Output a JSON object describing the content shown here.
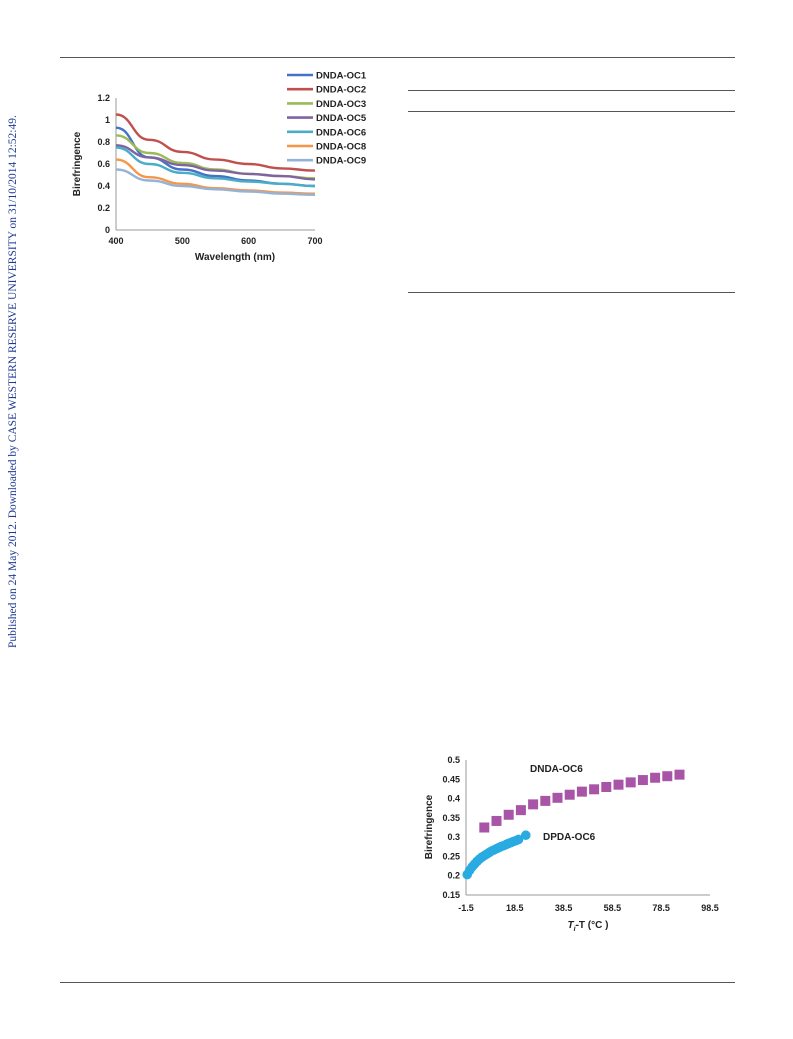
{
  "watermark": "Published on 24 May 2012. Downloaded by CASE WESTERN RESERVE UNIVERSITY on 31/10/2014 12:52:49.",
  "chart_data": [
    {
      "type": "line",
      "xlabel": "Wavelength (nm)",
      "ylabel": "Birefringence",
      "xlim": [
        400,
        700
      ],
      "ylim": [
        0,
        1.2
      ],
      "xticks": [
        "400",
        "500",
        "600",
        "700"
      ],
      "yticks": [
        "0",
        "0.2",
        "0.4",
        "0.6",
        "0.8",
        "1",
        "1.2"
      ],
      "legend_position": "top-right",
      "grid": false,
      "series": [
        {
          "name": "DNDA-OC1",
          "color": "#4472c4",
          "x": [
            400,
            450,
            500,
            550,
            600,
            650,
            700
          ],
          "y": [
            0.93,
            0.66,
            0.55,
            0.49,
            0.45,
            0.42,
            0.4
          ]
        },
        {
          "name": "DNDA-OC2",
          "color": "#c0504d",
          "x": [
            400,
            450,
            500,
            550,
            600,
            650,
            700
          ],
          "y": [
            1.05,
            0.82,
            0.71,
            0.64,
            0.6,
            0.56,
            0.54
          ]
        },
        {
          "name": "DNDA-OC3",
          "color": "#9bbb59",
          "x": [
            400,
            450,
            500,
            550,
            600,
            650,
            700
          ],
          "y": [
            0.86,
            0.7,
            0.61,
            0.55,
            0.51,
            0.49,
            0.47
          ]
        },
        {
          "name": "DNDA-OC5",
          "color": "#8064a2",
          "x": [
            400,
            450,
            500,
            550,
            600,
            650,
            700
          ],
          "y": [
            0.77,
            0.66,
            0.59,
            0.54,
            0.51,
            0.49,
            0.46
          ]
        },
        {
          "name": "DNDA-OC6",
          "color": "#4bacc6",
          "x": [
            400,
            450,
            500,
            550,
            600,
            650,
            700
          ],
          "y": [
            0.75,
            0.6,
            0.52,
            0.47,
            0.44,
            0.42,
            0.4
          ]
        },
        {
          "name": "DNDA-OC8",
          "color": "#f79646",
          "x": [
            400,
            450,
            500,
            550,
            600,
            650,
            700
          ],
          "y": [
            0.64,
            0.48,
            0.42,
            0.38,
            0.36,
            0.34,
            0.33
          ]
        },
        {
          "name": "DNDA-OC9",
          "color": "#95b3d7",
          "x": [
            400,
            450,
            500,
            550,
            600,
            650,
            700
          ],
          "y": [
            0.55,
            0.45,
            0.4,
            0.37,
            0.35,
            0.33,
            0.32
          ]
        }
      ]
    },
    {
      "type": "scatter",
      "xlabel": "Tᵢ-T (°C )",
      "xlabel_main": "T",
      "xlabel_sub": "i",
      "xlabel_rest": "-T (°C )",
      "ylabel": "Birefringence",
      "xlim": [
        -1.5,
        98.5
      ],
      "ylim": [
        0.15,
        0.5
      ],
      "xticks": [
        "-1.5",
        "18.5",
        "38.5",
        "58.5",
        "78.5",
        "98.5"
      ],
      "yticks": [
        "0.15",
        "0.2",
        "0.25",
        "0.3",
        "0.35",
        "0.4",
        "0.45",
        "0.5"
      ],
      "grid": false,
      "series": [
        {
          "name": "DNDA-OC6",
          "color": "#a855a8",
          "marker": "square",
          "x": [
            6,
            11,
            16,
            21,
            26,
            31,
            36,
            41,
            46,
            51,
            56,
            61,
            66,
            71,
            76,
            81,
            86
          ],
          "y": [
            0.325,
            0.342,
            0.358,
            0.37,
            0.385,
            0.394,
            0.402,
            0.41,
            0.418,
            0.424,
            0.43,
            0.436,
            0.442,
            0.448,
            0.454,
            0.458,
            0.462
          ]
        },
        {
          "name": "DPDA-OC6",
          "color": "#29abe2",
          "marker": "circle",
          "x": [
            -1,
            0,
            1,
            2,
            3,
            4,
            5,
            6,
            7,
            8,
            9,
            10,
            11,
            12,
            13,
            14,
            15,
            16,
            17,
            18,
            19,
            20,
            23
          ],
          "y": [
            0.203,
            0.214,
            0.223,
            0.23,
            0.237,
            0.243,
            0.248,
            0.252,
            0.256,
            0.26,
            0.264,
            0.267,
            0.27,
            0.273,
            0.276,
            0.278,
            0.281,
            0.284,
            0.286,
            0.289,
            0.291,
            0.294,
            0.305
          ]
        }
      ],
      "labels": [
        {
          "text": "DNDA-OC6",
          "series": "DNDA-OC6"
        },
        {
          "text": "DPDA-OC6",
          "series": "DPDA-OC6"
        }
      ]
    }
  ]
}
